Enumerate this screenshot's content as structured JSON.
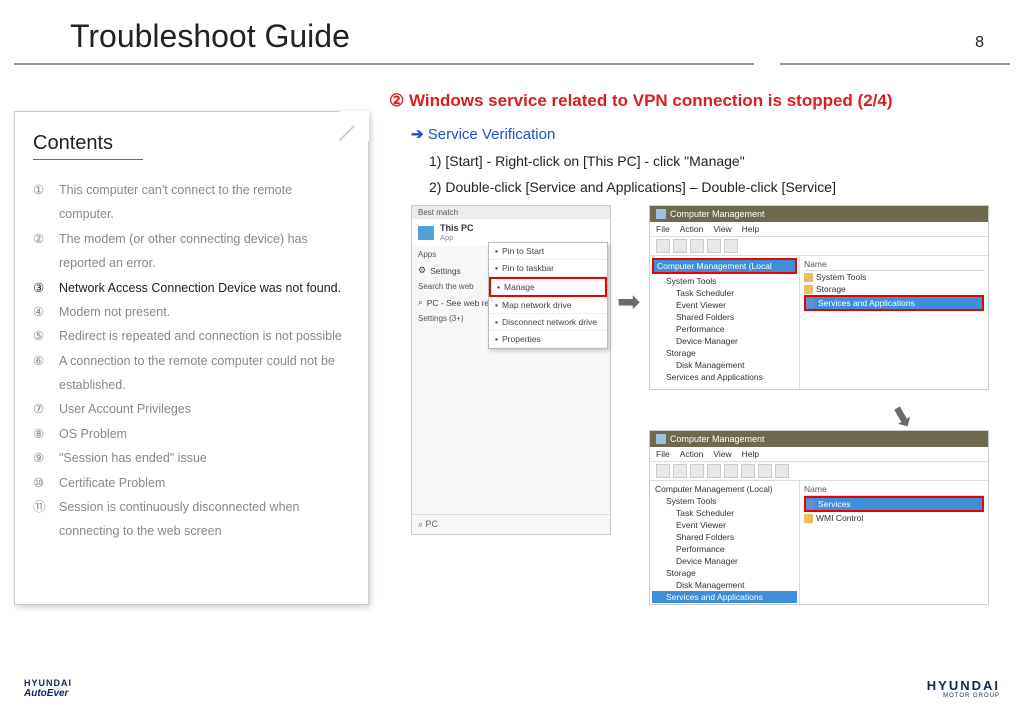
{
  "header": {
    "title": "Troubleshoot Guide",
    "page_num": "8"
  },
  "contents": {
    "title": "Contents",
    "items": [
      {
        "num": "①",
        "text": "This computer can't connect to the remote computer."
      },
      {
        "num": "②",
        "text": "The modem (or other connecting device) has reported an error."
      },
      {
        "num": "③",
        "text": "Network Access Connection Device was not found."
      },
      {
        "num": "④",
        "text": "Modem not present."
      },
      {
        "num": "⑤",
        "text": "Redirect is repeated and connection is not possible"
      },
      {
        "num": "⑥",
        "text": "A connection to the remote computer could not be established."
      },
      {
        "num": "⑦",
        "text": "User Account Privileges"
      },
      {
        "num": "⑧",
        "text": "OS Problem"
      },
      {
        "num": "⑨",
        "text": "\"Session has ended\" issue"
      },
      {
        "num": "⑩",
        "text": "Certificate Problem"
      },
      {
        "num": "⑪",
        "text": "Session is continuously disconnected when connecting to the web screen"
      }
    ],
    "active_index": 2
  },
  "section": {
    "num": "②",
    "title": "Windows service related to VPN connection is stopped (2/4)",
    "color": "#d91e1e",
    "subtitle_arrow": "➔",
    "subtitle": "Service Verification",
    "steps": [
      "1) [Start] - Right-click on [This PC] - click \"Manage\"",
      "2) Double-click [Service and Applications] – Double-click [Service]"
    ]
  },
  "start_menu": {
    "best_match": "Best match",
    "this_pc": "This PC",
    "app": "App",
    "apps": "Apps",
    "settings": "Settings",
    "search_web": "Search the web",
    "pc_search": "PC - See web re",
    "settings3": "Settings (3+)",
    "search_placeholder": "⌕  PC"
  },
  "ctx": {
    "items": [
      "Pin to Start",
      "Pin to taskbar",
      "Manage",
      "Map network drive",
      "Disconnect network drive",
      "Properties"
    ],
    "highlight_index": 2
  },
  "cm1": {
    "title": "Computer Management",
    "menu": [
      "File",
      "Action",
      "View",
      "Help"
    ],
    "root": "Computer Management (Local",
    "tree": [
      "System Tools",
      "Task Scheduler",
      "Event Viewer",
      "Shared Folders",
      "Performance",
      "Device Manager",
      "Storage",
      "Disk Management",
      "Services and Applications"
    ],
    "rp_header": "Name",
    "rp": [
      "System Tools",
      "Storage",
      "Services and Applications"
    ]
  },
  "cm2": {
    "title": "Computer Management",
    "menu": [
      "File",
      "Action",
      "View",
      "Help"
    ],
    "root": "Computer Management (Local)",
    "tree": [
      "System Tools",
      "Task Scheduler",
      "Event Viewer",
      "Shared Folders",
      "Performance",
      "Device Manager",
      "Storage",
      "Disk Management",
      "Services and Applications"
    ],
    "rp_header": "Name",
    "rp": [
      "Services",
      "WMI Control"
    ]
  },
  "footer": {
    "ae_top": "HYUNDAI",
    "ae_bot": "AutoEver",
    "h_top": "HYUNDAI",
    "h_bot": "MOTOR GROUP"
  }
}
